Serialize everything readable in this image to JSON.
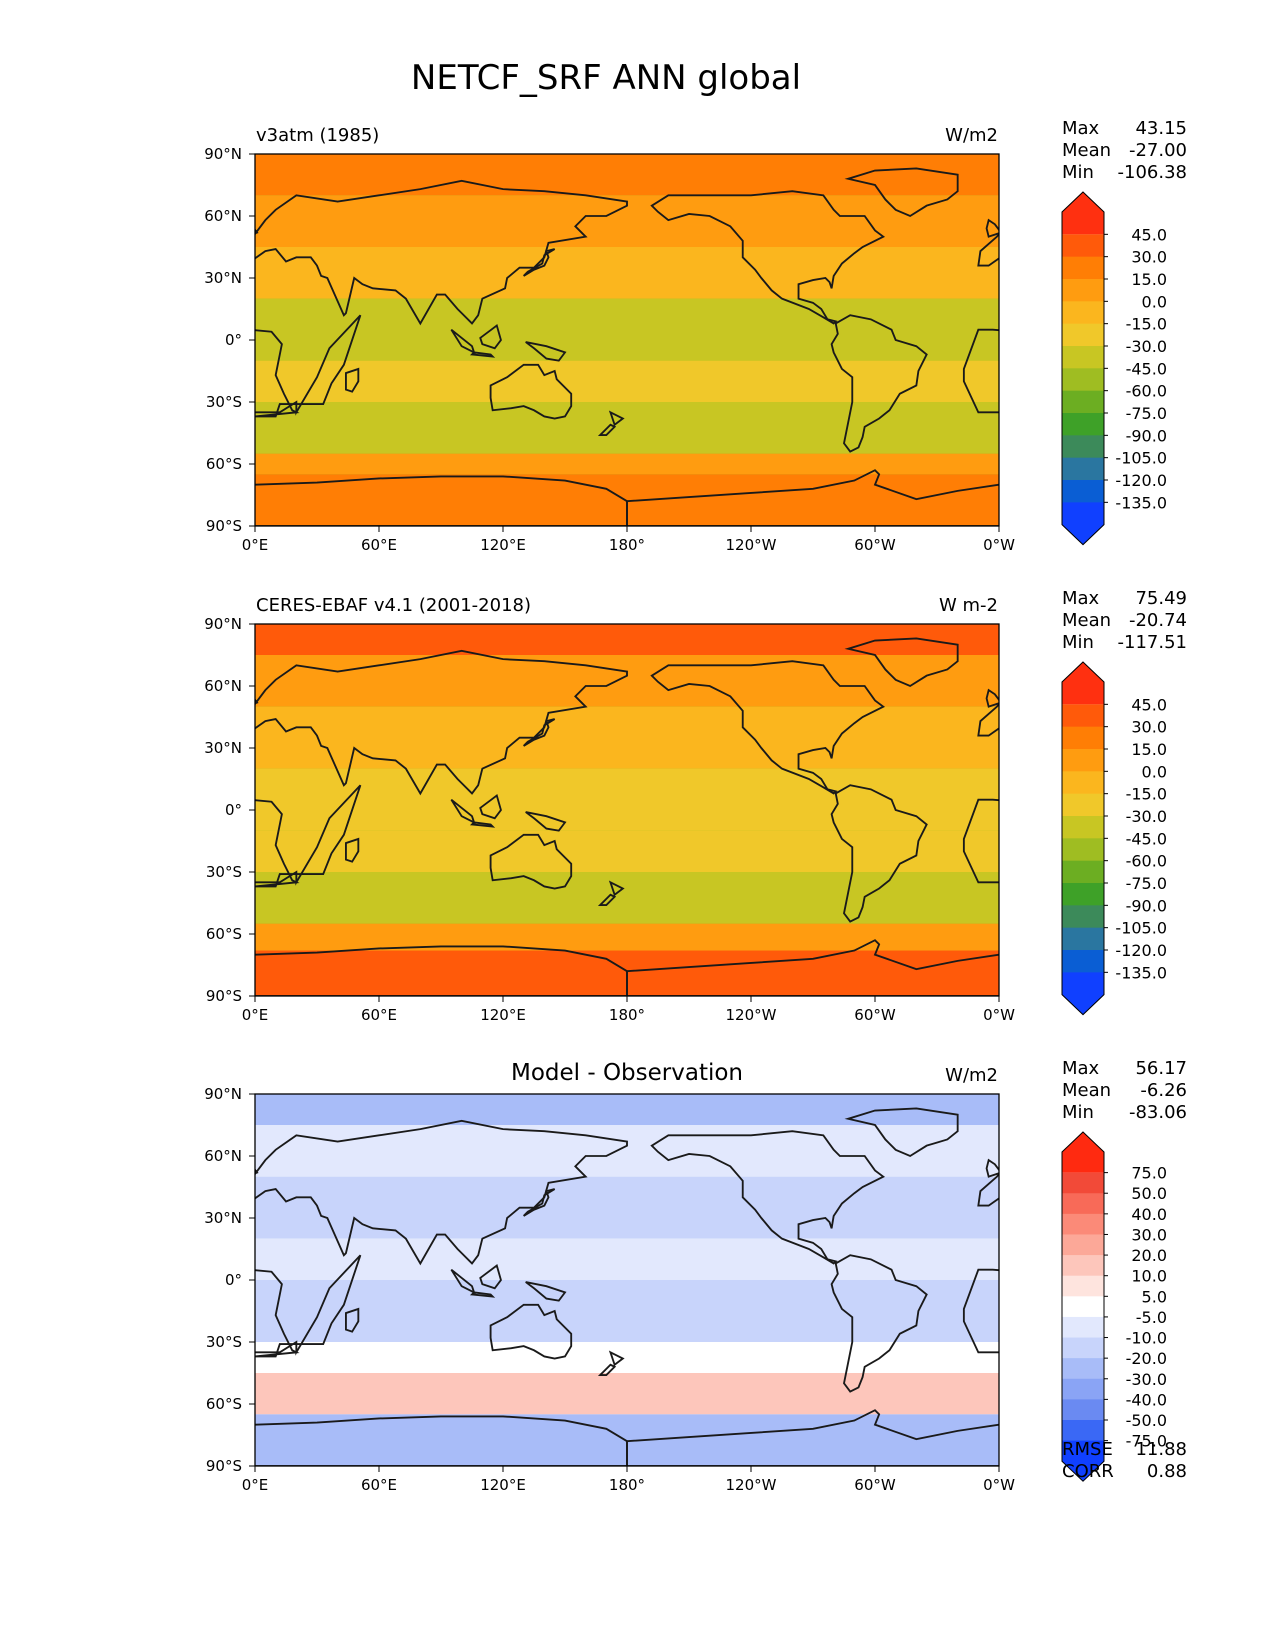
{
  "suptitle": "NETCF_SRF ANN global",
  "colors": {
    "land_outline": "#1a1a1a",
    "frame": "#000000"
  },
  "chart_data": [
    {
      "type": "heatmap",
      "title_left": "v3atm (1985)",
      "title_center": "",
      "units": "W/m2",
      "xticks": [
        "0°E",
        "60°E",
        "120°E",
        "180°",
        "120°W",
        "60°W",
        "0°W"
      ],
      "yticks": [
        "90°N",
        "60°N",
        "30°N",
        "0°",
        "30°S",
        "60°S",
        "90°S"
      ],
      "xlim": [
        0,
        360
      ],
      "ylim": [
        -90,
        90
      ],
      "stats": [
        {
          "label": "Max",
          "value": "43.15"
        },
        {
          "label": "Mean",
          "value": "-27.00"
        },
        {
          "label": "Min",
          "value": "-106.38"
        }
      ],
      "levels": [
        "45.0",
        "30.0",
        "15.0",
        "0.0",
        "-15.0",
        "-30.0",
        "-45.0",
        "-60.0",
        "-75.0",
        "-90.0",
        "-105.0",
        "-120.0",
        "-135.0"
      ],
      "colorbar_colors": [
        "#ff3010",
        "#ff5a0a",
        "#ff7e05",
        "#ff9c10",
        "#fbb61e",
        "#f0c82a",
        "#c8c623",
        "#9fbd22",
        "#6cae22",
        "#3ea128",
        "#3c8a5a",
        "#2a76a0",
        "#0a5ed4",
        "#1040ff"
      ],
      "field_bands": [
        {
          "lat": [
            90,
            70
          ],
          "level": 2
        },
        {
          "lat": [
            70,
            45
          ],
          "level": 3
        },
        {
          "lat": [
            45,
            20
          ],
          "level": 4
        },
        {
          "lat": [
            20,
            -10
          ],
          "level": 6
        },
        {
          "lat": [
            -10,
            -30
          ],
          "level": 5
        },
        {
          "lat": [
            -30,
            -55
          ],
          "level": 6
        },
        {
          "lat": [
            -55,
            -65
          ],
          "level": 3
        },
        {
          "lat": [
            -65,
            -90
          ],
          "level": 2
        }
      ]
    },
    {
      "type": "heatmap",
      "title_left": "CERES-EBAF v4.1 (2001-2018)",
      "title_center": "",
      "units": "W m-2",
      "xticks": [
        "0°E",
        "60°E",
        "120°E",
        "180°",
        "120°W",
        "60°W",
        "0°W"
      ],
      "yticks": [
        "90°N",
        "60°N",
        "30°N",
        "0°",
        "30°S",
        "60°S",
        "90°S"
      ],
      "xlim": [
        0,
        360
      ],
      "ylim": [
        -90,
        90
      ],
      "stats": [
        {
          "label": "Max",
          "value": "75.49"
        },
        {
          "label": "Mean",
          "value": "-20.74"
        },
        {
          "label": "Min",
          "value": "-117.51"
        }
      ],
      "levels": [
        "45.0",
        "30.0",
        "15.0",
        "0.0",
        "-15.0",
        "-30.0",
        "-45.0",
        "-60.0",
        "-75.0",
        "-90.0",
        "-105.0",
        "-120.0",
        "-135.0"
      ],
      "colorbar_colors": [
        "#ff3010",
        "#ff5a0a",
        "#ff7e05",
        "#ff9c10",
        "#fbb61e",
        "#f0c82a",
        "#c8c623",
        "#9fbd22",
        "#6cae22",
        "#3ea128",
        "#3c8a5a",
        "#2a76a0",
        "#0a5ed4",
        "#1040ff"
      ],
      "field_bands": [
        {
          "lat": [
            90,
            75
          ],
          "level": 1
        },
        {
          "lat": [
            75,
            50
          ],
          "level": 3
        },
        {
          "lat": [
            50,
            20
          ],
          "level": 4
        },
        {
          "lat": [
            20,
            -10
          ],
          "level": 5
        },
        {
          "lat": [
            -10,
            -30
          ],
          "level": 5
        },
        {
          "lat": [
            -30,
            -55
          ],
          "level": 6
        },
        {
          "lat": [
            -55,
            -68
          ],
          "level": 3
        },
        {
          "lat": [
            -68,
            -90
          ],
          "level": 1
        }
      ]
    },
    {
      "type": "heatmap",
      "title_left": "",
      "title_center": "Model - Observation",
      "units": "W/m2",
      "xticks": [
        "0°E",
        "60°E",
        "120°E",
        "180°",
        "120°W",
        "60°W",
        "0°W"
      ],
      "yticks": [
        "90°N",
        "60°N",
        "30°N",
        "0°",
        "30°S",
        "60°S",
        "90°S"
      ],
      "xlim": [
        0,
        360
      ],
      "ylim": [
        -90,
        90
      ],
      "stats": [
        {
          "label": "Max",
          "value": "56.17"
        },
        {
          "label": "Mean",
          "value": "-6.26"
        },
        {
          "label": "Min",
          "value": "-83.06"
        }
      ],
      "extra_stats": [
        {
          "label": "RMSE",
          "value": "11.88"
        },
        {
          "label": "CORR",
          "value": "0.88"
        }
      ],
      "levels": [
        "75.0",
        "50.0",
        "40.0",
        "30.0",
        "20.0",
        "10.0",
        "5.0",
        "-5.0",
        "-10.0",
        "-20.0",
        "-30.0",
        "-40.0",
        "-50.0",
        "-75.0"
      ],
      "colorbar_colors": [
        "#ff2a10",
        "#f24a38",
        "#f86a58",
        "#fb8a78",
        "#fca898",
        "#fdc6bb",
        "#fee4de",
        "#ffffff",
        "#e2e8fd",
        "#c8d4fb",
        "#a8bcf8",
        "#8aa4f5",
        "#6a8af2",
        "#3a68f5",
        "#1040ff"
      ],
      "field_bands": [
        {
          "lat": [
            90,
            75
          ],
          "level": 10
        },
        {
          "lat": [
            75,
            50
          ],
          "level": 8
        },
        {
          "lat": [
            50,
            20
          ],
          "level": 9
        },
        {
          "lat": [
            20,
            0
          ],
          "level": 8
        },
        {
          "lat": [
            0,
            -30
          ],
          "level": 9
        },
        {
          "lat": [
            -30,
            -45
          ],
          "level": 7
        },
        {
          "lat": [
            -45,
            -65
          ],
          "level": 5
        },
        {
          "lat": [
            -65,
            -90
          ],
          "level": 10
        }
      ]
    }
  ]
}
